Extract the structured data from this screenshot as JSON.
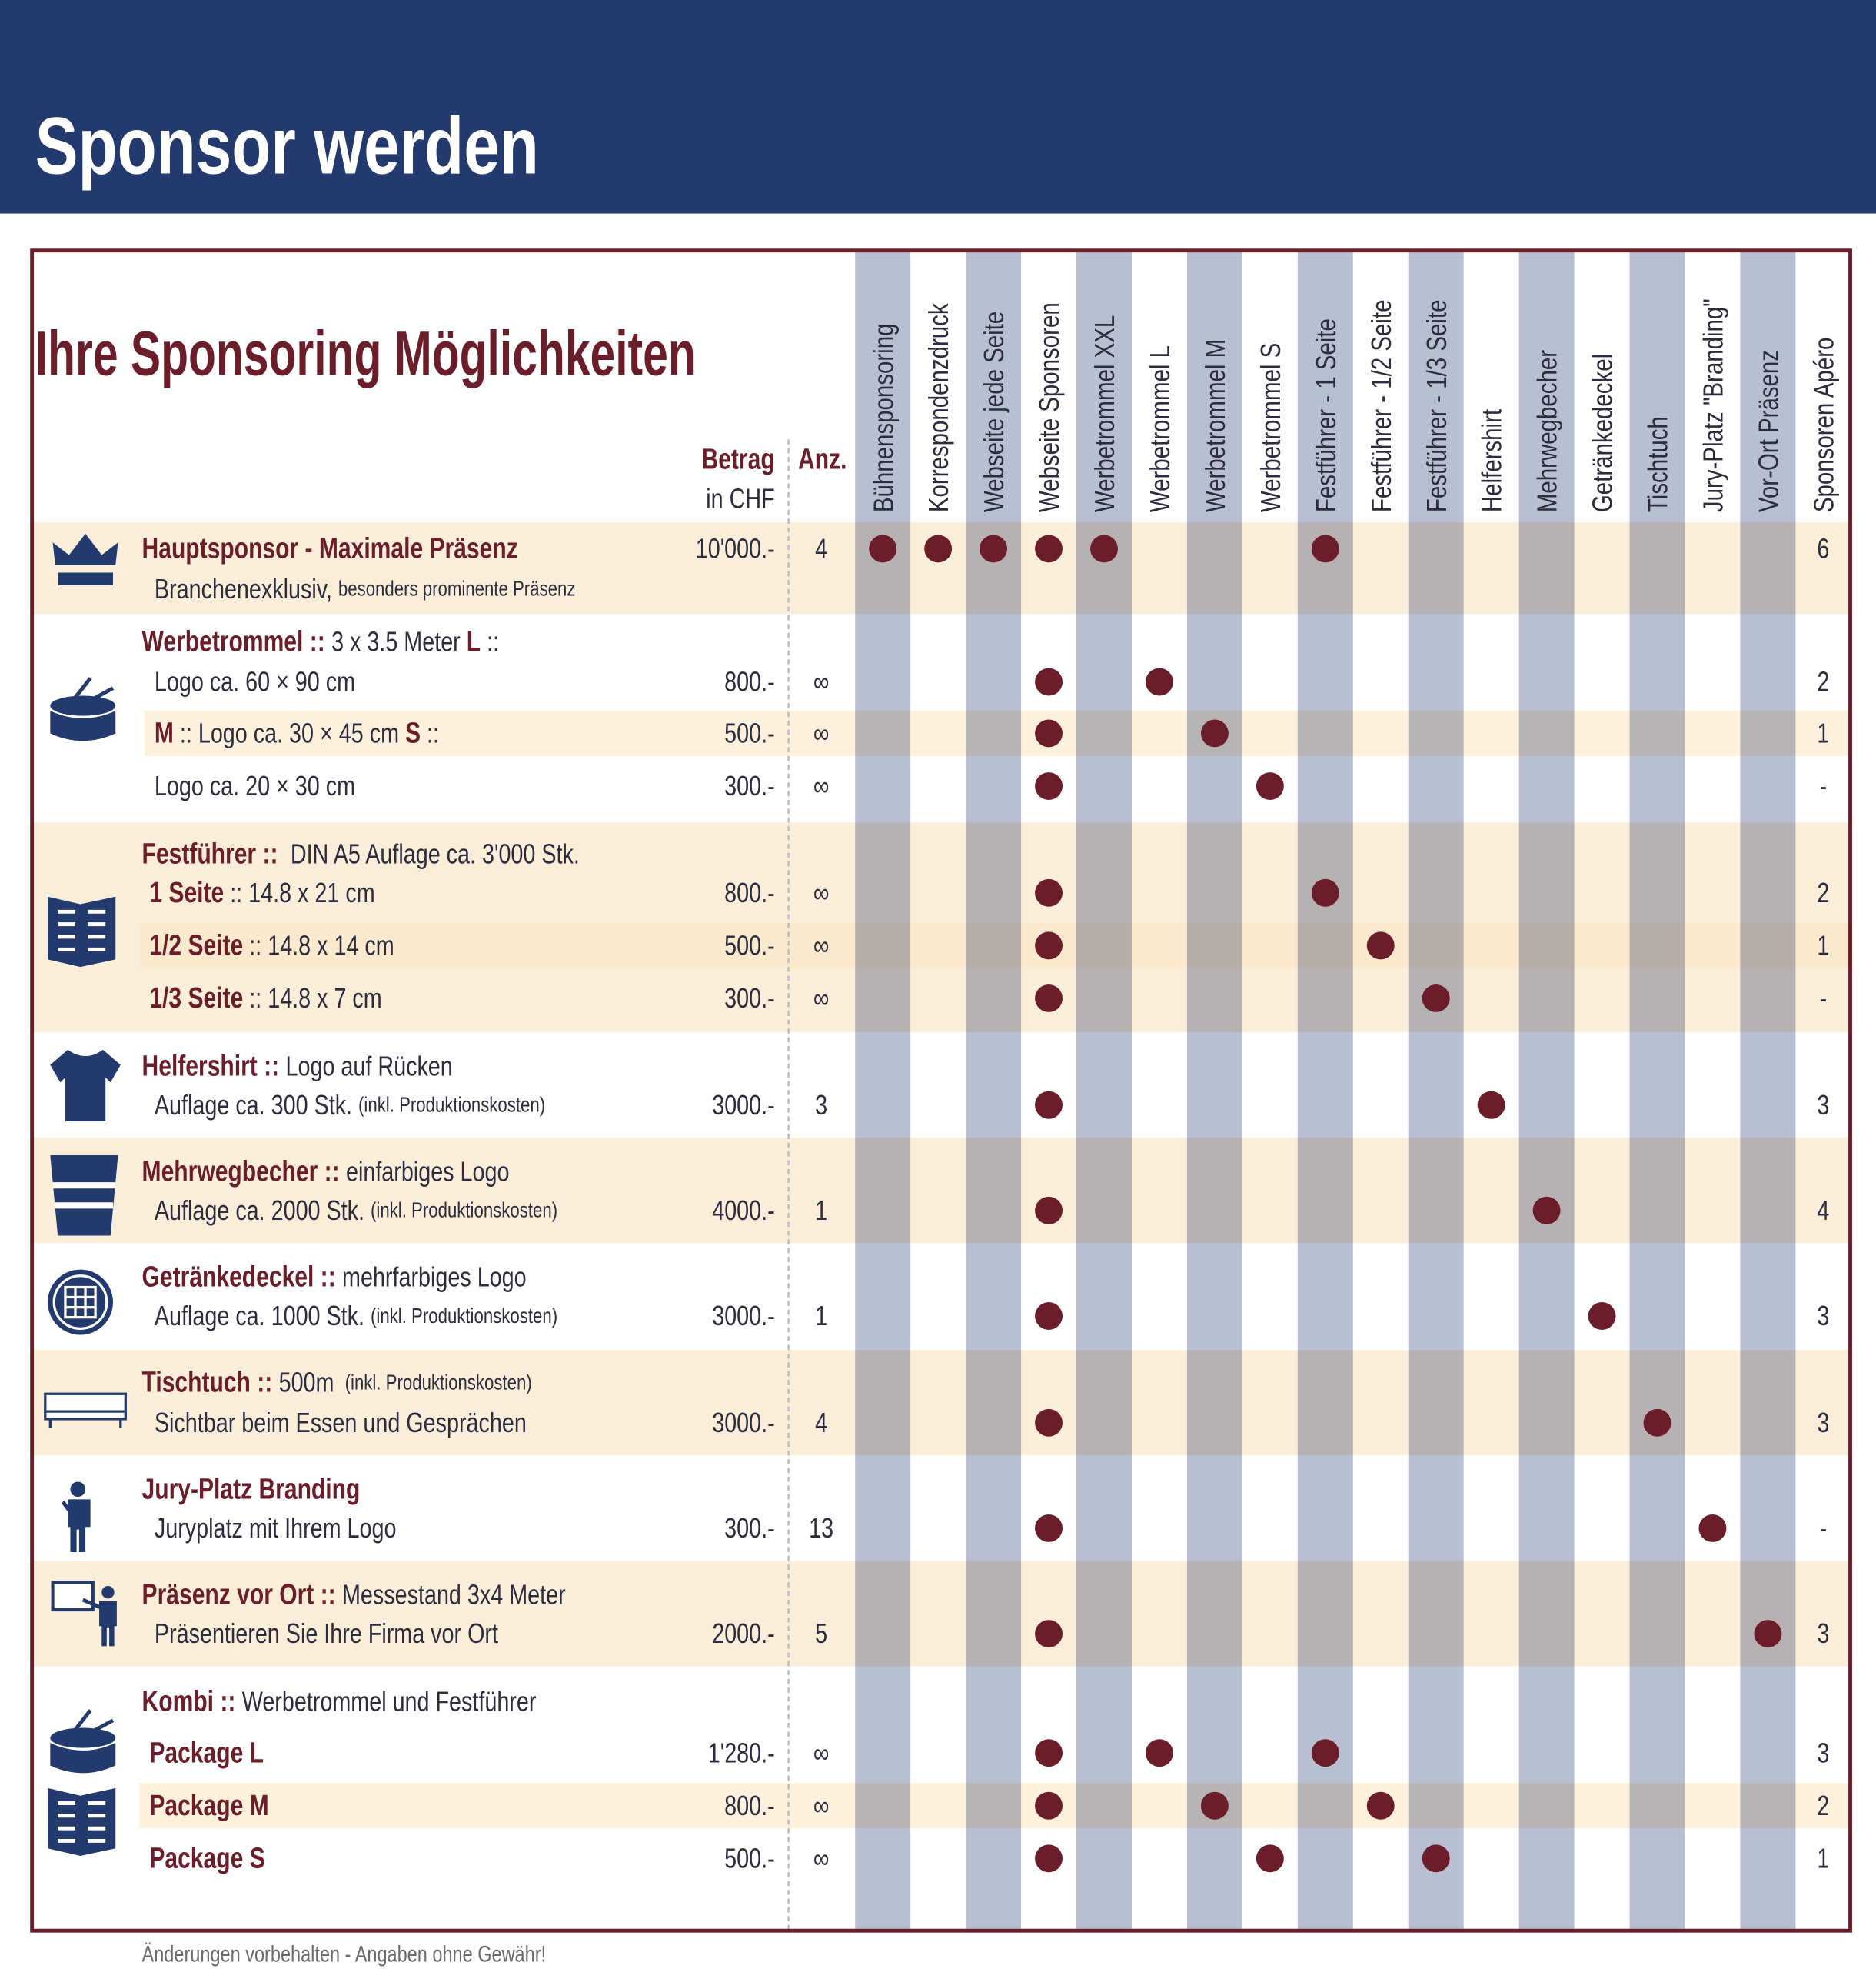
{
  "header": {
    "title": "Sponsor werden"
  },
  "table": {
    "title": "Ihre Sponsoring Möglichkeiten",
    "amount_label": "Betrag",
    "amount_unit": "in CHF",
    "count_label": "Anz.",
    "columns": [
      "Bühnensponsoring",
      "Korrespondenzdruck",
      "Webseite jede Seite",
      "Webseite Sponsoren",
      "Werbetrommel XXL",
      "Werbetrommel L",
      "Werbetrommel M",
      "Werbetrommel S",
      "Festführer - 1 Seite",
      "Festführer - 1/2 Seite",
      "Festführer - 1/3 Seite",
      "Helfershirt",
      "Mehrwegbecher",
      "Getränkedeckel",
      "Tischtuch",
      "Jury-Platz \"Branding\"",
      "Vor-Ort Präsenz",
      "Sponsoren Apéro"
    ],
    "groups": [
      {
        "lines": [
          {
            "text": [
              {
                "text": "Hauptsponsor - Maximale Präsenz",
                "style": "bold"
              }
            ],
            "amount": "10'000.-",
            "count": "4",
            "included": [
              true,
              true,
              true,
              true,
              true,
              false,
              false,
              false,
              true,
              false,
              false,
              false,
              false,
              false,
              false,
              false,
              false
            ],
            "apero": "6"
          },
          {
            "text": [
              {
                "text": "Branchenexklusiv, ",
                "style": "regular"
              },
              {
                "text": "besonders prominente Präsenz",
                "style": "small"
              }
            ]
          }
        ]
      },
      {
        "lines": [
          {
            "text": [
              {
                "text": "Werbetrommel :: ",
                "style": "bold"
              },
              {
                "text": "3 x 3.5 Meter ",
                "style": "regular"
              },
              {
                "text": "L",
                "style": "bold"
              },
              {
                "text": " ::",
                "style": "regular"
              }
            ]
          },
          {
            "text": [
              {
                "text": "Logo ca. 60 × 90 cm",
                "style": "regular"
              }
            ],
            "amount": "800.-",
            "count": "∞",
            "included": [
              false,
              false,
              false,
              true,
              false,
              true,
              false,
              false,
              false,
              false,
              false,
              false,
              false,
              false,
              false,
              false,
              false
            ],
            "apero": "2"
          },
          {
            "text": [
              {
                "text": "M",
                "style": "bold"
              },
              {
                "text": " :: Logo ca. 30 × 45 cm ",
                "style": "regular"
              },
              {
                "text": "S",
                "style": "bold"
              },
              {
                "text": " ::",
                "style": "regular"
              }
            ],
            "amount": "500.-",
            "count": "∞",
            "included": [
              false,
              false,
              false,
              true,
              false,
              false,
              true,
              false,
              false,
              false,
              false,
              false,
              false,
              false,
              false,
              false,
              false
            ],
            "apero": "1"
          },
          {
            "text": [
              {
                "text": "Logo ca. 20 × 30 cm",
                "style": "regular"
              }
            ],
            "amount": "300.-",
            "count": "∞",
            "included": [
              false,
              false,
              false,
              true,
              false,
              false,
              false,
              true,
              false,
              false,
              false,
              false,
              false,
              false,
              false,
              false,
              false
            ],
            "apero": "-"
          }
        ]
      },
      {
        "lines": [
          {
            "text": [
              {
                "text": "Festführer :: ",
                "style": "bold"
              },
              {
                "text": " DIN A5 Auflage ca. 3'000 Stk.",
                "style": "regular"
              }
            ]
          },
          {
            "text": [
              {
                "text": "1 Seite",
                "style": "bold"
              },
              {
                "text": " :: 14.8 x 21 cm",
                "style": "regular"
              }
            ],
            "amount": "800.-",
            "count": "∞",
            "included": [
              false,
              false,
              false,
              true,
              false,
              false,
              false,
              false,
              true,
              false,
              false,
              false,
              false,
              false,
              false,
              false,
              false
            ],
            "apero": "2"
          },
          {
            "text": [
              {
                "text": "1/2 Seite",
                "style": "bold"
              },
              {
                "text": " :: 14.8 x 14 cm",
                "style": "regular"
              }
            ],
            "amount": "500.-",
            "count": "∞",
            "included": [
              false,
              false,
              false,
              true,
              false,
              false,
              false,
              false,
              false,
              true,
              false,
              false,
              false,
              false,
              false,
              false,
              false
            ],
            "apero": "1"
          },
          {
            "text": [
              {
                "text": "1/3 Seite",
                "style": "bold"
              },
              {
                "text": " :: 14.8 x 7 cm",
                "style": "regular"
              }
            ],
            "amount": "300.-",
            "count": "∞",
            "included": [
              false,
              false,
              false,
              true,
              false,
              false,
              false,
              false,
              false,
              false,
              true,
              false,
              false,
              false,
              false,
              false,
              false
            ],
            "apero": "-"
          }
        ]
      },
      {
        "lines": [
          {
            "text": [
              {
                "text": "Helfershirt :: ",
                "style": "bold"
              },
              {
                "text": "Logo auf Rücken",
                "style": "regular"
              }
            ]
          },
          {
            "text": [
              {
                "text": "Auflage ca. 300 Stk. ",
                "style": "regular"
              },
              {
                "text": "(inkl. Produktionskosten)",
                "style": "small"
              }
            ],
            "amount": "3000.-",
            "count": "3",
            "included": [
              false,
              false,
              false,
              true,
              false,
              false,
              false,
              false,
              false,
              false,
              false,
              true,
              false,
              false,
              false,
              false,
              false
            ],
            "apero": "3"
          }
        ]
      },
      {
        "lines": [
          {
            "text": [
              {
                "text": "Mehrwegbecher :: ",
                "style": "bold"
              },
              {
                "text": "einfarbiges Logo",
                "style": "regular"
              }
            ]
          },
          {
            "text": [
              {
                "text": "Auflage ca. 2000 Stk. ",
                "style": "regular"
              },
              {
                "text": "(inkl. Produktionskosten)",
                "style": "small"
              }
            ],
            "amount": "4000.-",
            "count": "1",
            "included": [
              false,
              false,
              false,
              true,
              false,
              false,
              false,
              false,
              false,
              false,
              false,
              false,
              true,
              false,
              false,
              false,
              false
            ],
            "apero": "4"
          }
        ]
      },
      {
        "lines": [
          {
            "text": [
              {
                "text": "Getränkedeckel :: ",
                "style": "bold"
              },
              {
                "text": "mehrfarbiges Logo",
                "style": "regular"
              }
            ]
          },
          {
            "text": [
              {
                "text": "Auflage ca. 1000 Stk. ",
                "style": "regular"
              },
              {
                "text": "(inkl. Produktionskosten)",
                "style": "small"
              }
            ],
            "amount": "3000.-",
            "count": "1",
            "included": [
              false,
              false,
              false,
              true,
              false,
              false,
              false,
              false,
              false,
              false,
              false,
              false,
              false,
              true,
              false,
              false,
              false
            ],
            "apero": "3"
          }
        ]
      },
      {
        "lines": [
          {
            "text": [
              {
                "text": "Tischtuch :: ",
                "style": "bold"
              },
              {
                "text": "500m ",
                "style": "regular"
              },
              {
                "text": " (inkl. Produktionskosten)",
                "style": "small"
              }
            ]
          },
          {
            "text": [
              {
                "text": "Sichtbar beim Essen und Gesprächen",
                "style": "regular"
              }
            ],
            "amount": "3000.-",
            "count": "4",
            "included": [
              false,
              false,
              false,
              true,
              false,
              false,
              false,
              false,
              false,
              false,
              false,
              false,
              false,
              false,
              true,
              false,
              false
            ],
            "apero": "3"
          }
        ]
      },
      {
        "lines": [
          {
            "text": [
              {
                "text": "Jury-Platz Branding",
                "style": "bold"
              }
            ]
          },
          {
            "text": [
              {
                "text": "Juryplatz mit Ihrem Logo",
                "style": "regular"
              }
            ],
            "amount": "300.-",
            "count": "13",
            "included": [
              false,
              false,
              false,
              true,
              false,
              false,
              false,
              false,
              false,
              false,
              false,
              false,
              false,
              false,
              false,
              true,
              false
            ],
            "apero": "-"
          }
        ]
      },
      {
        "lines": [
          {
            "text": [
              {
                "text": "Präsenz vor Ort :: ",
                "style": "bold"
              },
              {
                "text": "Messestand 3x4 Meter",
                "style": "regular"
              }
            ]
          },
          {
            "text": [
              {
                "text": "Präsentieren Sie Ihre Firma vor Ort",
                "style": "regular"
              }
            ],
            "amount": "2000.-",
            "count": "5",
            "included": [
              false,
              false,
              false,
              true,
              false,
              false,
              false,
              false,
              false,
              false,
              false,
              false,
              false,
              false,
              false,
              false,
              true
            ],
            "apero": "3"
          }
        ]
      },
      {
        "lines": [
          {
            "text": [
              {
                "text": "Kombi :: ",
                "style": "bold"
              },
              {
                "text": "Werbetrommel und Festführer",
                "style": "regular"
              }
            ]
          },
          {
            "text": [
              {
                "text": "Package L",
                "style": "bold"
              }
            ],
            "amount": "1'280.-",
            "count": "∞",
            "included": [
              false,
              false,
              false,
              true,
              false,
              true,
              false,
              false,
              true,
              false,
              false,
              false,
              false,
              false,
              false,
              false,
              false
            ],
            "apero": "3"
          },
          {
            "text": [
              {
                "text": "Package M",
                "style": "bold"
              }
            ],
            "amount": "800.-",
            "count": "∞",
            "included": [
              false,
              false,
              false,
              true,
              false,
              false,
              true,
              false,
              false,
              true,
              false,
              false,
              false,
              false,
              false,
              false,
              false
            ],
            "apero": "2"
          },
          {
            "text": [
              {
                "text": "Package S",
                "style": "bold"
              }
            ],
            "amount": "500.-",
            "count": "∞",
            "included": [
              false,
              false,
              false,
              true,
              false,
              false,
              false,
              true,
              false,
              false,
              true,
              false,
              false,
              false,
              false,
              false,
              false
            ],
            "apero": "1"
          }
        ]
      }
    ]
  },
  "footer": "Änderungen vorbehalten - Angaben ohne Gewähr!"
}
